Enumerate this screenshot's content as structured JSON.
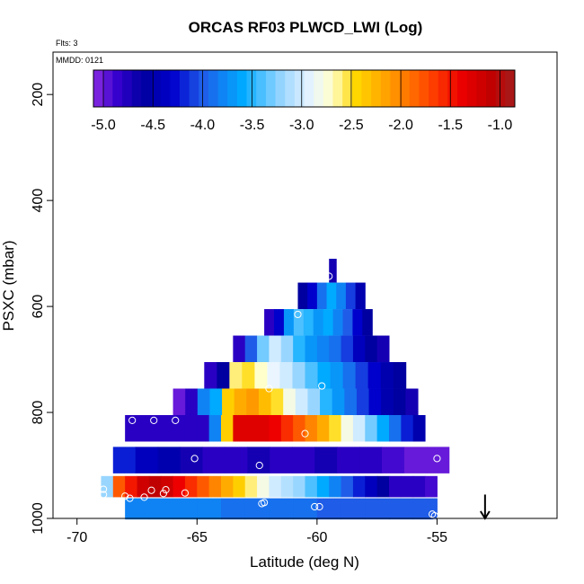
{
  "chart_data": {
    "type": "heatmap",
    "title": "ORCAS RF03 PLWCD_LWI (Log)",
    "xlabel": "Latitude (deg N)",
    "ylabel": "PSXC (mbar)",
    "flights_label": "Flts: 3",
    "mmdd_label": "MMDD: 0121",
    "xlim": [
      -71.0,
      -50.0
    ],
    "ylim": [
      1000,
      120
    ],
    "x_ticks": [
      -70,
      -65,
      -60,
      -55
    ],
    "x_tick_labels": [
      "-70",
      "-65",
      "-60",
      "-55"
    ],
    "y_ticks": [
      1000,
      800,
      600,
      400,
      200
    ],
    "y_tick_labels": [
      "1000",
      "800",
      "600",
      "400",
      "200"
    ],
    "colorbar": {
      "range": [
        -5.1,
        -0.85
      ],
      "ticks": [
        -5.0,
        -4.5,
        -4.0,
        -3.5,
        -3.0,
        -2.5,
        -2.0,
        -1.5,
        -1.0
      ],
      "tick_labels": [
        "-5.0",
        "-4.5",
        "-4.0",
        "-3.5",
        "-3.0",
        "-2.5",
        "-2.0",
        "-1.5",
        "-1.0"
      ],
      "stops": [
        {
          "v": -5.1,
          "c": "#8a2be2"
        },
        {
          "v": -4.85,
          "c": "#3300cc"
        },
        {
          "v": -4.6,
          "c": "#0000a0"
        },
        {
          "v": -4.3,
          "c": "#0000cc"
        },
        {
          "v": -4.0,
          "c": "#1f5ce8"
        },
        {
          "v": -3.6,
          "c": "#00aaff"
        },
        {
          "v": -3.2,
          "c": "#99d6ff"
        },
        {
          "v": -2.9,
          "c": "#eaf5ff"
        },
        {
          "v": -2.7,
          "c": "#ffffcc"
        },
        {
          "v": -2.45,
          "c": "#ffd700"
        },
        {
          "v": -2.1,
          "c": "#ff9900"
        },
        {
          "v": -1.7,
          "c": "#ff4400"
        },
        {
          "v": -1.4,
          "c": "#ee0000"
        },
        {
          "v": -1.1,
          "c": "#c00000"
        },
        {
          "v": -0.85,
          "c": "#a51d1d"
        }
      ]
    },
    "layers": [
      {
        "p_top": 510,
        "p_bot": 555,
        "lat_start": -59.5,
        "lat_end": -59.2,
        "values": [
          -4.7
        ]
      },
      {
        "p_top": 555,
        "p_bot": 605,
        "lat_start": -60.8,
        "lat_end": -58.0,
        "values": [
          -4.6,
          -4.3,
          -3.9,
          -3.6,
          -3.8,
          -4.1,
          -4.5
        ]
      },
      {
        "p_top": 605,
        "p_bot": 655,
        "lat_start": -62.2,
        "lat_end": -57.7,
        "values": [
          -4.8,
          -4.3,
          -3.7,
          -3.4,
          -3.5,
          -3.7,
          -3.6,
          -3.8,
          -4.0,
          -4.3,
          -4.6
        ]
      },
      {
        "p_top": 655,
        "p_bot": 705,
        "lat_start": -63.5,
        "lat_end": -57.0,
        "values": [
          -4.8,
          -4.0,
          -3.3,
          -3.0,
          -3.2,
          -3.5,
          -3.7,
          -3.8,
          -3.9,
          -4.1,
          -4.4,
          -4.6,
          -4.7
        ]
      },
      {
        "p_top": 705,
        "p_bot": 755,
        "lat_start": -64.7,
        "lat_end": -56.3,
        "values": [
          -4.8,
          -4.6,
          -2.6,
          -2.5,
          -2.7,
          -2.9,
          -3.0,
          -3.2,
          -3.4,
          -3.6,
          -3.7,
          -3.9,
          -4.1,
          -4.3,
          -4.5,
          -4.6
        ]
      },
      {
        "p_top": 755,
        "p_bot": 805,
        "lat_start": -66.0,
        "lat_end": -55.8,
        "values": [
          -5.0,
          -4.8,
          -3.8,
          -3.6,
          -2.4,
          -2.2,
          -2.1,
          -2.3,
          -2.5,
          -2.8,
          -3.0,
          -3.2,
          -3.5,
          -3.7,
          -3.9,
          -4.1,
          -4.3,
          -4.5,
          -4.6,
          -4.7
        ]
      },
      {
        "p_top": 805,
        "p_bot": 855,
        "lat_start": -68.0,
        "lat_end": -55.5,
        "values": [
          -4.8,
          -4.8,
          -4.8,
          -4.8,
          -4.8,
          -4.8,
          -4.8,
          -3.8,
          -2.4,
          -1.3,
          -1.3,
          -1.3,
          -1.4,
          -1.6,
          -1.8,
          -2.0,
          -2.2,
          -2.5,
          -2.8,
          -3.0,
          -3.3,
          -3.6,
          -3.9,
          -4.2,
          -4.5
        ]
      },
      {
        "p_top": 865,
        "p_bot": 915,
        "lat_start": -68.5,
        "lat_end": -54.5,
        "values": [
          -4.2,
          -4.4,
          -4.5,
          -4.7,
          -4.8,
          -4.8,
          -4.7,
          -4.8,
          -4.8,
          -4.7,
          -4.8,
          -4.8,
          -4.9,
          -5.0,
          -5.0
        ]
      },
      {
        "p_top": 920,
        "p_bot": 960,
        "lat_start": -69.0,
        "lat_end": -55.0,
        "values": [
          -3.2,
          -1.8,
          -1.5,
          -1.2,
          -1.1,
          -1.2,
          -1.4,
          -1.6,
          -1.8,
          -2.0,
          -2.2,
          -2.4,
          -2.6,
          -2.8,
          -3.0,
          -3.1,
          -3.2,
          -3.4,
          -3.6,
          -3.8,
          -4.0,
          -4.2,
          -4.4,
          -4.6,
          -4.8,
          -4.8,
          -4.8,
          -4.9
        ]
      },
      {
        "p_top": 962,
        "p_bot": 1002,
        "lat_start": -68.0,
        "lat_end": -55.0,
        "values": [
          -3.8,
          -3.8,
          -3.8,
          -3.8,
          -3.9,
          -3.9,
          -3.9,
          -3.9,
          -4.0,
          -4.0,
          -4.0,
          -4.0,
          -4.0
        ]
      }
    ],
    "points": [
      {
        "lat": -59.5,
        "p": 543
      },
      {
        "lat": -60.8,
        "p": 615
      },
      {
        "lat": -62.0,
        "p": 755
      },
      {
        "lat": -59.8,
        "p": 750
      },
      {
        "lat": -67.7,
        "p": 815
      },
      {
        "lat": -66.8,
        "p": 815
      },
      {
        "lat": -65.9,
        "p": 815
      },
      {
        "lat": -60.5,
        "p": 840
      },
      {
        "lat": -65.1,
        "p": 887
      },
      {
        "lat": -62.4,
        "p": 900
      },
      {
        "lat": -55.0,
        "p": 887
      },
      {
        "lat": -68.9,
        "p": 945
      },
      {
        "lat": -68.9,
        "p": 955
      },
      {
        "lat": -68.0,
        "p": 958
      },
      {
        "lat": -67.8,
        "p": 962
      },
      {
        "lat": -67.2,
        "p": 960
      },
      {
        "lat": -66.9,
        "p": 947
      },
      {
        "lat": -66.4,
        "p": 953
      },
      {
        "lat": -66.3,
        "p": 946
      },
      {
        "lat": -65.5,
        "p": 952
      },
      {
        "lat": -62.3,
        "p": 972
      },
      {
        "lat": -62.2,
        "p": 970
      },
      {
        "lat": -60.1,
        "p": 978
      },
      {
        "lat": -59.9,
        "p": 978
      },
      {
        "lat": -55.2,
        "p": 992
      },
      {
        "lat": -55.1,
        "p": 995
      }
    ],
    "arrow": {
      "lat": -53.0,
      "p_from": 955,
      "p_to": 1000,
      "direction": "down"
    }
  }
}
